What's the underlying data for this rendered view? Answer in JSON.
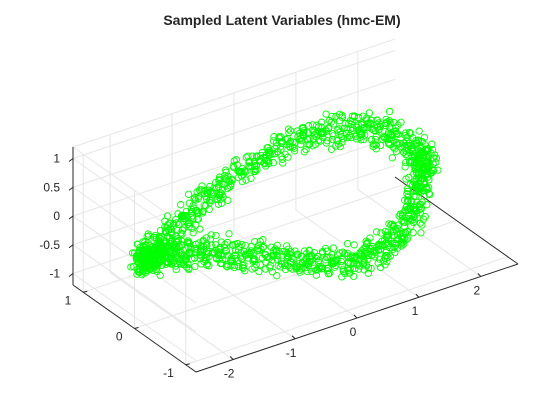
{
  "chart_data": {
    "type": "scatter",
    "subtype": "3d-scatter",
    "title": "Sampled Latent Variables (hmc-EM)",
    "xlabel": "",
    "ylabel": "",
    "zlabel": "",
    "x_ticks": [
      "-2",
      "-1",
      "0",
      "1",
      "2"
    ],
    "y_ticks": [
      "-1",
      "0",
      "1"
    ],
    "z_ticks": [
      "-1",
      "-0.5",
      "0",
      "0.5",
      "1"
    ],
    "xlim": [
      -2.6,
      2.6
    ],
    "ylim": [
      -1.2,
      1.2
    ],
    "zlim": [
      -1.2,
      1.2
    ],
    "grid": true,
    "box": true,
    "marker": "circle",
    "marker_color": "#00ff00",
    "series": [
      {
        "description": "closed ring of samples (twisted ellipse)",
        "x": [
          2.1,
          2.038,
          1.855,
          1.56,
          1.169,
          0.705,
          0.192,
          -0.342,
          -0.865,
          -1.35,
          -1.771,
          -2.104,
          -2.332,
          -2.443,
          -2.429,
          -2.291,
          -2.035,
          -1.674,
          -1.227,
          -0.716,
          -0.168,
          0.385,
          0.916,
          1.392,
          1.787,
          2.079
        ],
        "y": [
          0.0,
          0.255,
          0.494,
          0.703,
          0.867,
          0.978,
          1.027,
          1.012,
          0.932,
          0.793,
          0.601,
          0.37,
          0.112,
          -0.158,
          -0.422,
          -0.663,
          -0.865,
          -1.014,
          -1.101,
          -1.118,
          -1.064,
          -0.94,
          -0.755,
          -0.52,
          -0.251,
          0.029
        ],
        "z": [
          0.0,
          0.185,
          0.324,
          0.383,
          0.349,
          0.224,
          0.035,
          -0.175,
          -0.358,
          -0.47,
          -0.481,
          -0.382,
          -0.195,
          0.035,
          0.252,
          0.405,
          0.454,
          0.386,
          0.215,
          -0.017,
          -0.251,
          -0.431,
          -0.511,
          -0.469,
          -0.314,
          -0.084
        ]
      }
    ]
  }
}
